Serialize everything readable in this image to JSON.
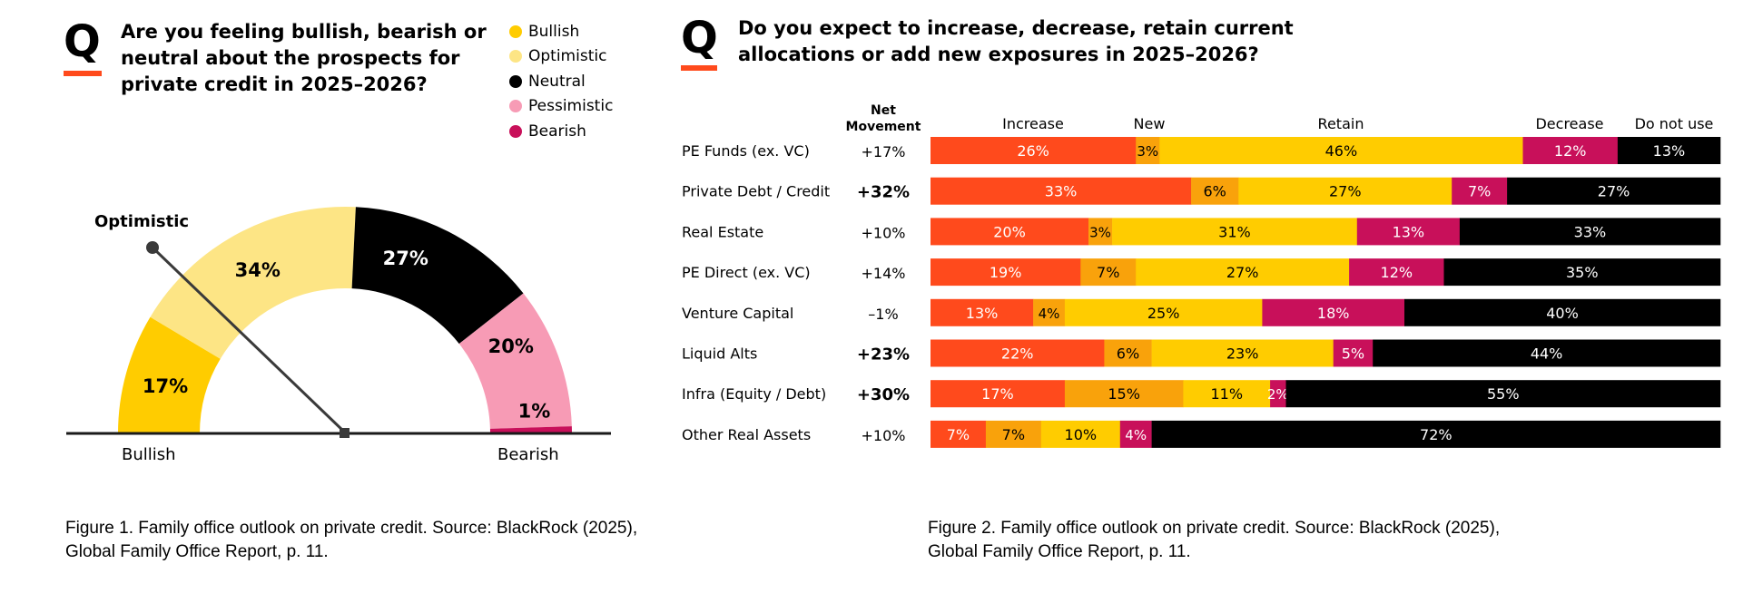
{
  "colors": {
    "bullish": "#ffcc00",
    "optimistic": "#fde585",
    "neutral": "#000000",
    "pessimistic": "#f79bb5",
    "bearish": "#c8105a",
    "increase": "#ff4a1c",
    "new": "#f9a20b",
    "retain": "#ffcc00",
    "decrease": "#c8105a",
    "donotuse": "#000000",
    "accent": "#ff4a1c"
  },
  "left": {
    "q": "Q",
    "title_lines": [
      "Are you feeling bullish, bearish or",
      "neutral about the prospects for",
      "private credit in 2025–2026?"
    ],
    "legend": [
      {
        "label": "Bullish",
        "color": "#ffcc00"
      },
      {
        "label": "Optimistic",
        "color": "#fde585"
      },
      {
        "label": "Neutral",
        "color": "#000000"
      },
      {
        "label": "Pessimistic",
        "color": "#f79bb5"
      },
      {
        "label": "Bearish",
        "color": "#c8105a"
      }
    ],
    "caption_lines": [
      "Figure 1. Family office outlook on private credit. Source: BlackRock (2025),",
      "Global Family Office Report, p. 11."
    ]
  },
  "right": {
    "q": "Q",
    "title_lines": [
      "Do you expect to increase, decrease, retain current",
      "allocations or add new exposures in 2025–2026?"
    ],
    "caption_lines": [
      "Figure 2. Family office outlook on private credit. Source: BlackRock (2025),",
      "Global Family Office Report, p. 11."
    ]
  },
  "chart_data": [
    {
      "type": "pie",
      "subtype": "half-donut-gauge",
      "categories": [
        "Bullish",
        "Optimistic",
        "Neutral",
        "Pessimistic",
        "Bearish"
      ],
      "values": [
        17,
        34,
        27,
        20,
        1
      ],
      "labels": [
        "17%",
        "34%",
        "27%",
        "20%",
        "1%"
      ],
      "pointer_label": "Optimistic",
      "axis_labels": [
        "Bullish",
        "Bearish"
      ]
    },
    {
      "type": "bar",
      "subtype": "stacked-horizontal-100",
      "net_header": [
        "Net",
        "Movement"
      ],
      "segments": [
        "Increase",
        "New",
        "Retain",
        "Decrease",
        "Do not use"
      ],
      "rows": [
        {
          "name": "PE Funds (ex. VC)",
          "net": "+17%",
          "net_bold": false,
          "values": [
            26,
            3,
            46,
            12,
            13
          ]
        },
        {
          "name": "Private Debt / Credit",
          "net": "+32%",
          "net_bold": true,
          "values": [
            33,
            6,
            27,
            7,
            27
          ]
        },
        {
          "name": "Real Estate",
          "net": "+10%",
          "net_bold": false,
          "values": [
            20,
            3,
            31,
            13,
            33
          ]
        },
        {
          "name": "PE Direct (ex. VC)",
          "net": "+14%",
          "net_bold": false,
          "values": [
            19,
            7,
            27,
            12,
            35
          ]
        },
        {
          "name": "Venture Capital",
          "net": "–1%",
          "net_bold": false,
          "values": [
            13,
            4,
            25,
            18,
            40
          ]
        },
        {
          "name": "Liquid Alts",
          "net": "+23%",
          "net_bold": true,
          "values": [
            22,
            6,
            23,
            5,
            44
          ]
        },
        {
          "name": "Infra (Equity / Debt)",
          "net": "+30%",
          "net_bold": true,
          "values": [
            17,
            15,
            11,
            2,
            55
          ]
        },
        {
          "name": "Other Real Assets",
          "net": "+10%",
          "net_bold": false,
          "values": [
            7,
            7,
            10,
            4,
            72
          ]
        }
      ]
    }
  ]
}
